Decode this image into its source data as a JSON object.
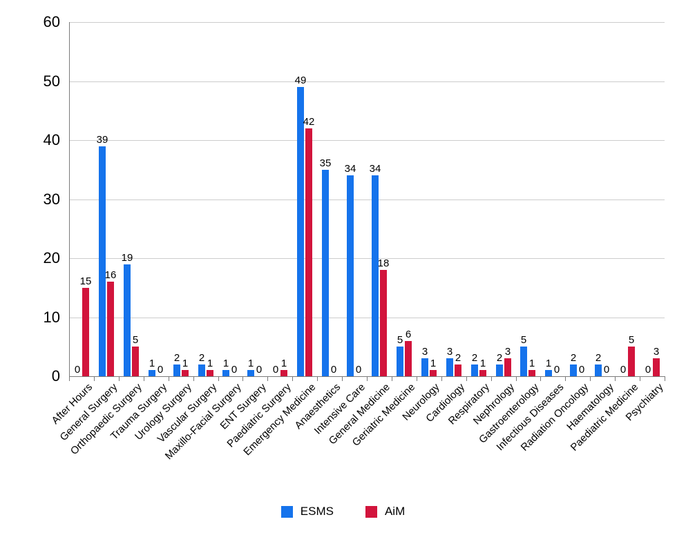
{
  "chart_data": {
    "type": "bar",
    "title": "",
    "xlabel": "",
    "ylabel": "",
    "categories": [
      "After Hours",
      "General Surgery",
      "Orthopaedic Surgery",
      "Trauma Surgery",
      "Urology Surgery",
      "Vascular Surgery",
      "Maxillo-Facial Surgery",
      "ENT Surgery",
      "Paediatric Surgery",
      "Emergency Medicine",
      "Anaesthetics",
      "Intensive Care",
      "General Medicine",
      "Geriatric Medicine",
      "Neurology",
      "Cardiology",
      "Respiratory",
      "Nephrology",
      "Gastroenterology",
      "Infectious Diseases",
      "Radiation Oncology",
      "Haematology",
      "Paediatric Medicine",
      "Psychiatry"
    ],
    "series": [
      {
        "name": "ESMS",
        "color": "#1573EC",
        "values": [
          0,
          39,
          19,
          1,
          2,
          2,
          1,
          1,
          0,
          49,
          35,
          34,
          34,
          5,
          3,
          3,
          2,
          2,
          5,
          1,
          2,
          2,
          0,
          0
        ]
      },
      {
        "name": "AiM",
        "color": "#D2143C",
        "values": [
          15,
          16,
          5,
          0,
          1,
          1,
          0,
          0,
          1,
          42,
          0,
          0,
          18,
          6,
          1,
          2,
          1,
          3,
          1,
          0,
          0,
          0,
          5,
          3
        ]
      }
    ],
    "ylim": [
      0,
      60
    ],
    "yticks": [
      0,
      10,
      20,
      30,
      40,
      50,
      60
    ],
    "grid": true,
    "bar_value_labels": true,
    "legend_position": "bottom",
    "x_label_rotation_deg": -45
  },
  "colors": {
    "background": "#ffffff",
    "gridline": "#cccccc",
    "axis": "#7a7a7a",
    "text": "#000000"
  }
}
